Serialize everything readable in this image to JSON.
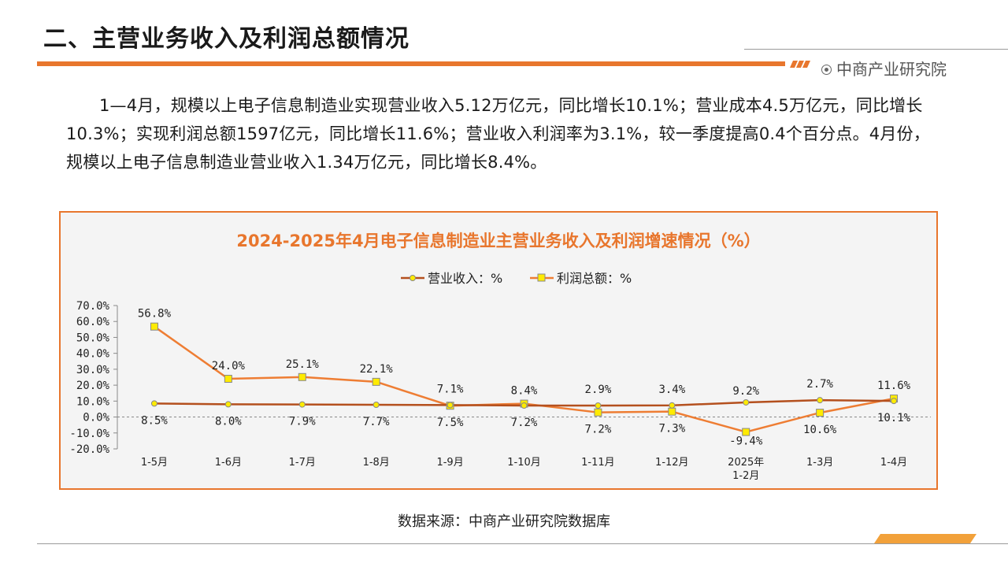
{
  "page": {
    "title": "二、主营业务收入及利润总额情况",
    "brand": "中商产业研究院",
    "paragraph": "1—4月，规模以上电子信息制造业实现营业收入5.12万亿元，同比增长10.1%；营业成本4.5万亿元，同比增长10.3%；实现利润总额1597亿元，同比增长11.6%；营业收入利润率为3.1%，较一季度提高0.4个百分点。4月份，规模以上电子信息制造业营业收入1.34万亿元，同比增长8.4%。",
    "source": "数据来源：中商产业研究院数据库",
    "colors": {
      "accent": "#e8762d",
      "revenue_line": "#b4501e",
      "profit_line": "#ee7d33",
      "marker_fill": "#ffeb00"
    }
  },
  "chart_data": {
    "type": "line",
    "title": "2024-2025年4月电子信息制造业主营业务收入及利润增速情况（%）",
    "categories": [
      "1-5月",
      "1-6月",
      "1-7月",
      "1-8月",
      "1-9月",
      "1-10月",
      "1-11月",
      "1-12月",
      "2025年\n1-2月",
      "1-3月",
      "1-4月"
    ],
    "series": [
      {
        "name": "营业收入：%",
        "values": [
          8.5,
          8.0,
          7.9,
          7.7,
          7.5,
          7.2,
          7.2,
          7.3,
          9.2,
          10.6,
          10.1
        ],
        "labels": [
          "8.5%",
          "8.0%",
          "7.9%",
          "7.7%",
          "7.5%",
          "7.2%",
          "7.2%",
          "7.3%",
          "9.2%",
          "10.6%",
          "10.1%"
        ]
      },
      {
        "name": "利润总额：%",
        "values": [
          56.8,
          24.0,
          25.1,
          22.1,
          7.1,
          8.4,
          2.9,
          3.4,
          -9.4,
          2.7,
          11.6
        ],
        "labels": [
          "56.8%",
          "24.0%",
          "25.1%",
          "22.1%",
          "7.1%",
          "8.4%",
          "2.9%",
          "3.4%",
          "-9.4%",
          "2.7%",
          "11.6%"
        ]
      }
    ],
    "ylim": [
      -20,
      70
    ],
    "yticks": [
      "70.0%",
      "60.0%",
      "50.0%",
      "40.0%",
      "30.0%",
      "20.0%",
      "10.0%",
      "0.0%",
      "-10.0%",
      "-20.0%"
    ],
    "ytick_values": [
      70,
      60,
      50,
      40,
      30,
      20,
      10,
      0,
      -10,
      -20
    ],
    "legend": "top-center",
    "grid": false
  }
}
